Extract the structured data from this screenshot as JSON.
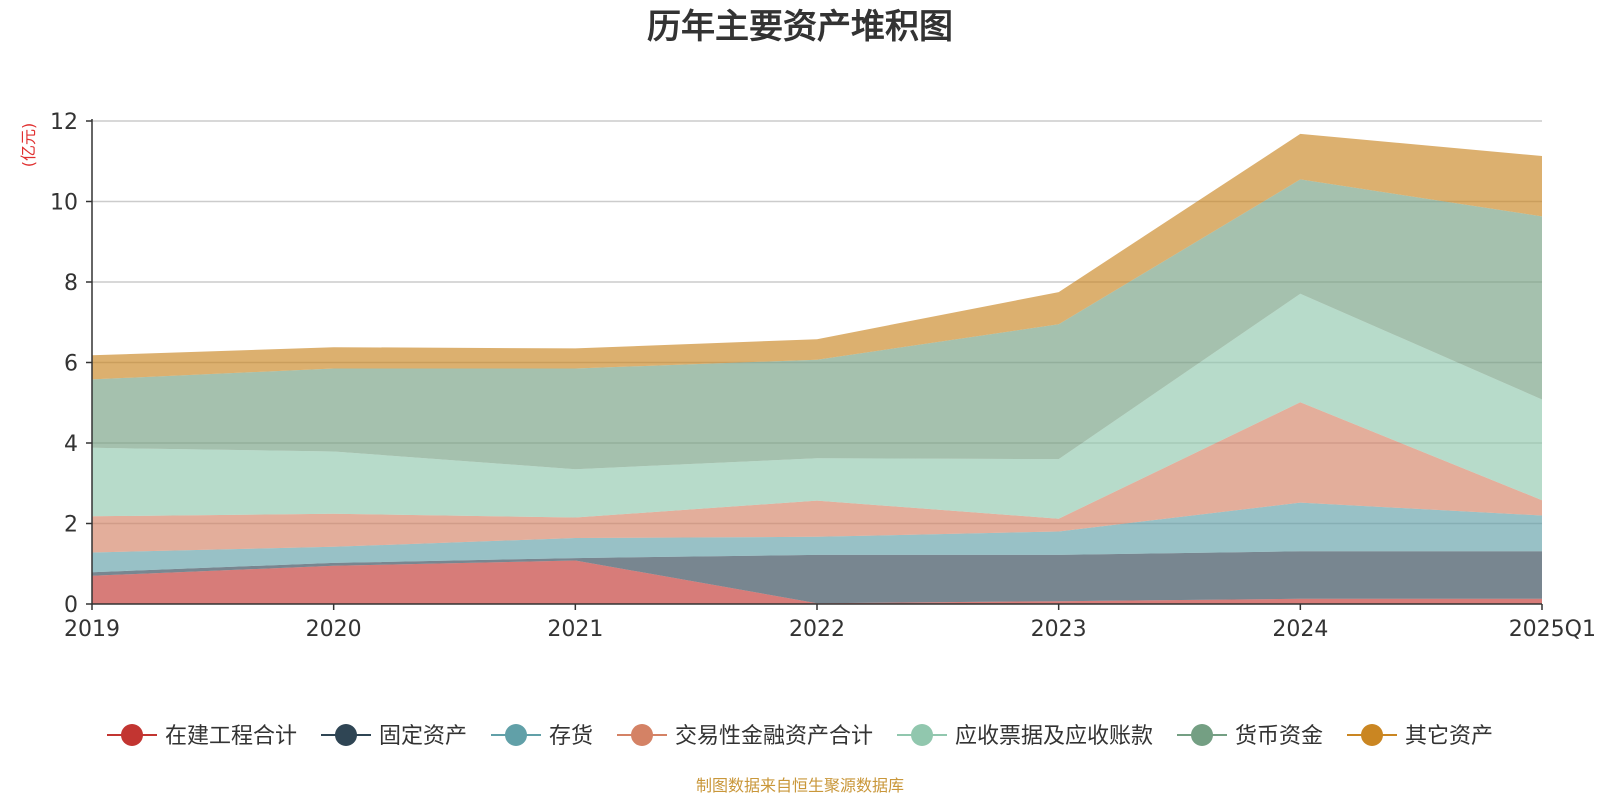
{
  "chart_data": {
    "type": "area",
    "stacked": true,
    "title": "历年主要资产堆积图",
    "unit_label": "(亿元)",
    "categories": [
      "2019",
      "2020",
      "2021",
      "2022",
      "2023",
      "2024",
      "2025Q1"
    ],
    "ylim": [
      0,
      12
    ],
    "yticks": [
      0,
      2,
      4,
      6,
      8,
      10,
      12
    ],
    "grid": true,
    "legend_position": "bottom",
    "series": [
      {
        "name": "在建工程合计",
        "color": "#c23531",
        "values": [
          0.7,
          0.95,
          1.08,
          0.02,
          0.07,
          0.13,
          0.13
        ]
      },
      {
        "name": "固定资产",
        "color": "#2f4554",
        "values": [
          0.09,
          0.07,
          0.06,
          1.2,
          1.15,
          1.18,
          1.18
        ]
      },
      {
        "name": "存货",
        "color": "#61a0a8",
        "values": [
          0.49,
          0.4,
          0.5,
          0.45,
          0.58,
          1.21,
          0.89
        ]
      },
      {
        "name": "交易性金融资产合计",
        "color": "#d48265",
        "values": [
          0.9,
          0.82,
          0.51,
          0.9,
          0.32,
          2.49,
          0.38
        ]
      },
      {
        "name": "应收票据及应收账款",
        "color": "#91c7ae",
        "values": [
          1.7,
          1.55,
          1.2,
          1.05,
          1.48,
          2.7,
          2.5
        ]
      },
      {
        "name": "货币资金",
        "color": "#749f83",
        "values": [
          1.7,
          2.06,
          2.5,
          2.45,
          3.35,
          2.84,
          4.55
        ]
      },
      {
        "name": "其它资产",
        "color": "#ca8622",
        "values": [
          0.6,
          0.53,
          0.5,
          0.51,
          0.8,
          1.13,
          1.5
        ]
      }
    ]
  },
  "footer": {
    "source": "制图数据来自恒生聚源数据库"
  }
}
